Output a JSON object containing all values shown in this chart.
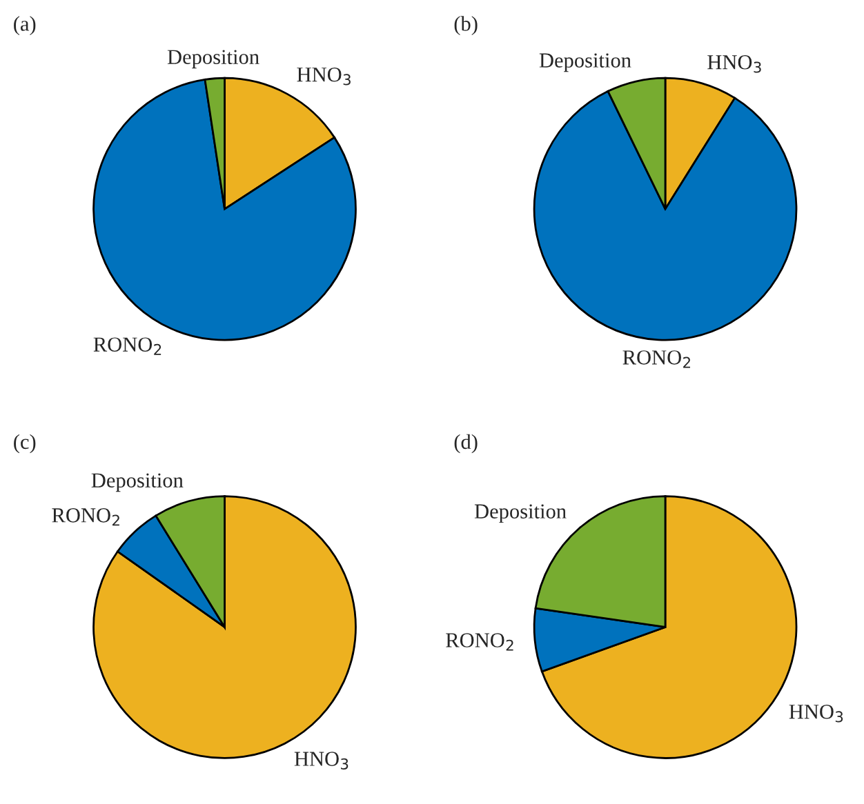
{
  "chart_data": [
    {
      "type": "pie",
      "title": "(a)",
      "categories": [
        "HNO$_{3}$",
        "RONO$_{2}$",
        "Deposition"
      ],
      "values": [
        15.8,
        81.8,
        2.4
      ],
      "colors": [
        "#edb120",
        "#0072bd",
        "#77ac30"
      ]
    },
    {
      "type": "pie",
      "title": "(b)",
      "categories": [
        "HNO$_{3}$",
        "RONO$_{2}$",
        "Deposition"
      ],
      "values": [
        8.9,
        83.9,
        7.2
      ],
      "colors": [
        "#edb120",
        "#0072bd",
        "#77ac30"
      ]
    },
    {
      "type": "pie",
      "title": "(c)",
      "categories": [
        "HNO$_{3}$",
        "RONO$_{2}$",
        "Deposition"
      ],
      "values": [
        84.8,
        6.4,
        8.8
      ],
      "colors": [
        "#edb120",
        "#0072bd",
        "#77ac30"
      ]
    },
    {
      "type": "pie",
      "title": "(d)",
      "categories": [
        "HNO$_{3}$",
        "RONO$_{2}$",
        "Deposition"
      ],
      "values": [
        69.5,
        7.8,
        22.7
      ],
      "colors": [
        "#edb120",
        "#0072bd",
        "#77ac30"
      ]
    }
  ]
}
